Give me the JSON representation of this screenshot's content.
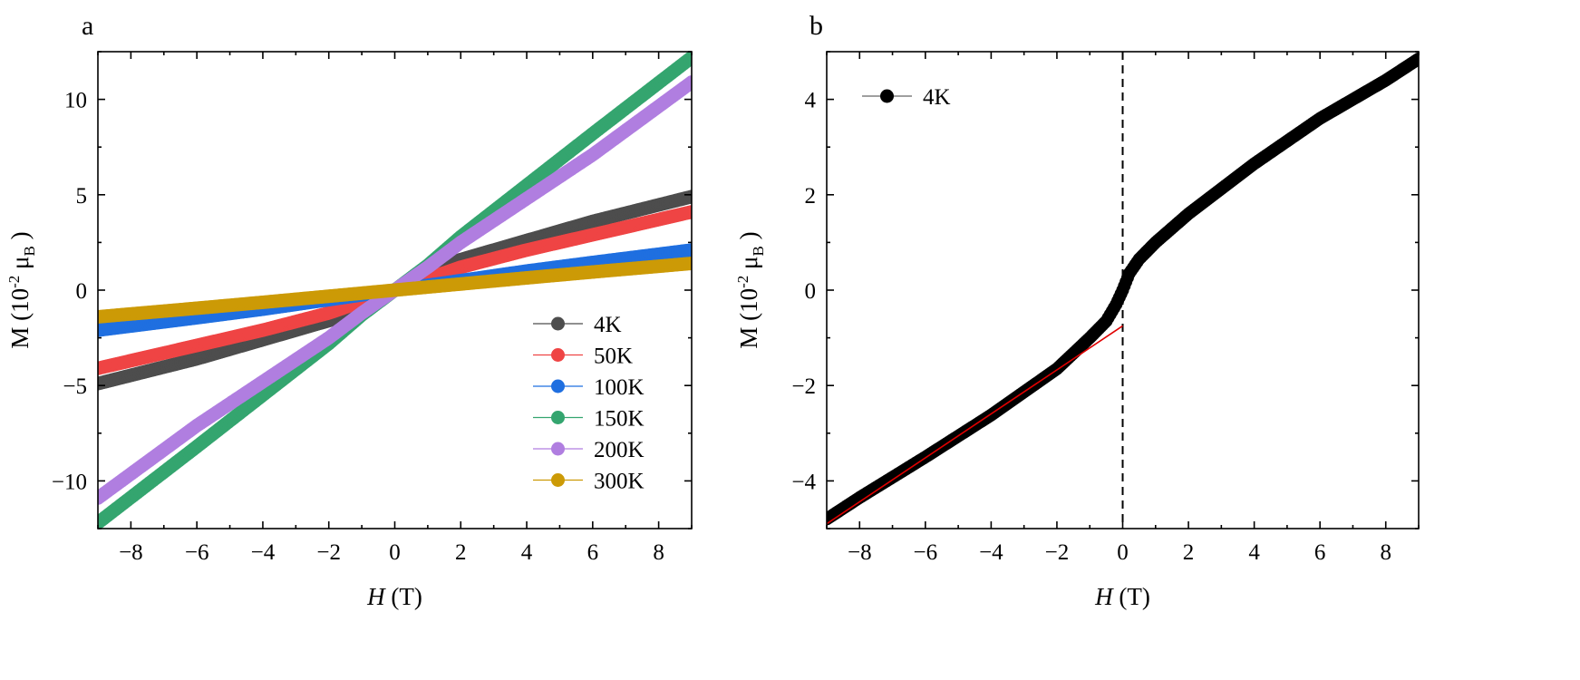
{
  "chart_data": [
    {
      "panel_label": "a",
      "type": "scatter",
      "xlabel_italic": "H",
      "xlabel_rest": " (T)",
      "ylabel_main": "M (10",
      "ylabel_sup": "-2",
      "ylabel_mu": " μ",
      "ylabel_sub": "B",
      "ylabel_end": " )",
      "xlim": [
        -9,
        9
      ],
      "ylim": [
        -12.5,
        12.5
      ],
      "xticks": [
        -8,
        -6,
        -4,
        -2,
        0,
        2,
        4,
        6,
        8
      ],
      "xtick_labels": [
        "−8",
        "−6",
        "−4",
        "−2",
        "0",
        "2",
        "4",
        "6",
        "8"
      ],
      "yticks": [
        -10,
        -5,
        0,
        5,
        10
      ],
      "ytick_labels": [
        "−10",
        "−5",
        "0",
        "5",
        "10"
      ],
      "legend_position": "bottom-right",
      "series": [
        {
          "name": "4K",
          "color": "#4d4d4d",
          "x": [
            -9,
            -6,
            -4,
            -2,
            -1,
            0,
            1,
            2,
            4,
            6,
            9
          ],
          "y": [
            -4.9,
            -3.6,
            -2.6,
            -1.6,
            -1.0,
            0,
            1.0,
            1.6,
            2.6,
            3.6,
            4.9
          ]
        },
        {
          "name": "50K",
          "color": "#ef4444",
          "x": [
            -9,
            -6,
            -4,
            -2,
            0,
            2,
            4,
            6,
            9
          ],
          "y": [
            -4.1,
            -2.9,
            -2.1,
            -1.2,
            0,
            1.2,
            2.1,
            2.9,
            4.1
          ]
        },
        {
          "name": "100K",
          "color": "#1f6fe0",
          "x": [
            -9,
            -6,
            -4,
            -2,
            0,
            2,
            4,
            6,
            9
          ],
          "y": [
            -2.1,
            -1.45,
            -1.0,
            -0.5,
            0,
            0.5,
            1.0,
            1.45,
            2.1
          ]
        },
        {
          "name": "150K",
          "color": "#34a56f",
          "x": [
            -9,
            -6,
            -4,
            -2,
            -1,
            0,
            1,
            2,
            4,
            6,
            9
          ],
          "y": [
            -12.2,
            -8.2,
            -5.5,
            -2.8,
            -1.3,
            0,
            1.3,
            2.8,
            5.5,
            8.2,
            12.2
          ]
        },
        {
          "name": "200K",
          "color": "#b07ee0",
          "x": [
            -9,
            -6,
            -4,
            -2,
            -1,
            0,
            1,
            2,
            4,
            6,
            9
          ],
          "y": [
            -10.9,
            -7.1,
            -4.8,
            -2.5,
            -1.2,
            0,
            1.2,
            2.5,
            4.8,
            7.1,
            10.9
          ]
        },
        {
          "name": "300K",
          "color": "#cc9a06",
          "x": [
            -9,
            -6,
            -4,
            -2,
            0,
            2,
            4,
            6,
            9
          ],
          "y": [
            -1.4,
            -0.95,
            -0.64,
            -0.32,
            0,
            0.32,
            0.64,
            0.95,
            1.4
          ]
        }
      ]
    },
    {
      "panel_label": "b",
      "type": "scatter",
      "xlabel_italic": "H",
      "xlabel_rest": " (T)",
      "ylabel_main": "M (10",
      "ylabel_sup": "-2",
      "ylabel_mu": " μ",
      "ylabel_sub": "B",
      "ylabel_end": " )",
      "xlim": [
        -9,
        9
      ],
      "ylim": [
        -5,
        5
      ],
      "xticks": [
        -8,
        -6,
        -4,
        -2,
        0,
        2,
        4,
        6,
        8
      ],
      "xtick_labels": [
        "−8",
        "−6",
        "−4",
        "−2",
        "0",
        "2",
        "4",
        "6",
        "8"
      ],
      "yticks": [
        -4,
        -2,
        0,
        2,
        4
      ],
      "ytick_labels": [
        "−4",
        "−2",
        "0",
        "2",
        "4"
      ],
      "legend_position": "top-left",
      "vline_x": 0,
      "series": [
        {
          "name": "4K",
          "color": "#000000",
          "x": [
            -9,
            -8,
            -6,
            -4,
            -2,
            -1,
            -0.5,
            -0.2,
            0,
            0.2,
            0.5,
            1,
            2,
            4,
            6,
            8,
            9
          ],
          "y": [
            -4.8,
            -4.35,
            -3.5,
            -2.62,
            -1.65,
            -1.0,
            -0.65,
            -0.3,
            0,
            0.35,
            0.65,
            1.0,
            1.6,
            2.65,
            3.6,
            4.4,
            4.85
          ]
        }
      ],
      "fit_line": {
        "color": "#e00000",
        "x": [
          -9,
          0
        ],
        "y": [
          -4.9,
          -0.75
        ]
      }
    }
  ]
}
